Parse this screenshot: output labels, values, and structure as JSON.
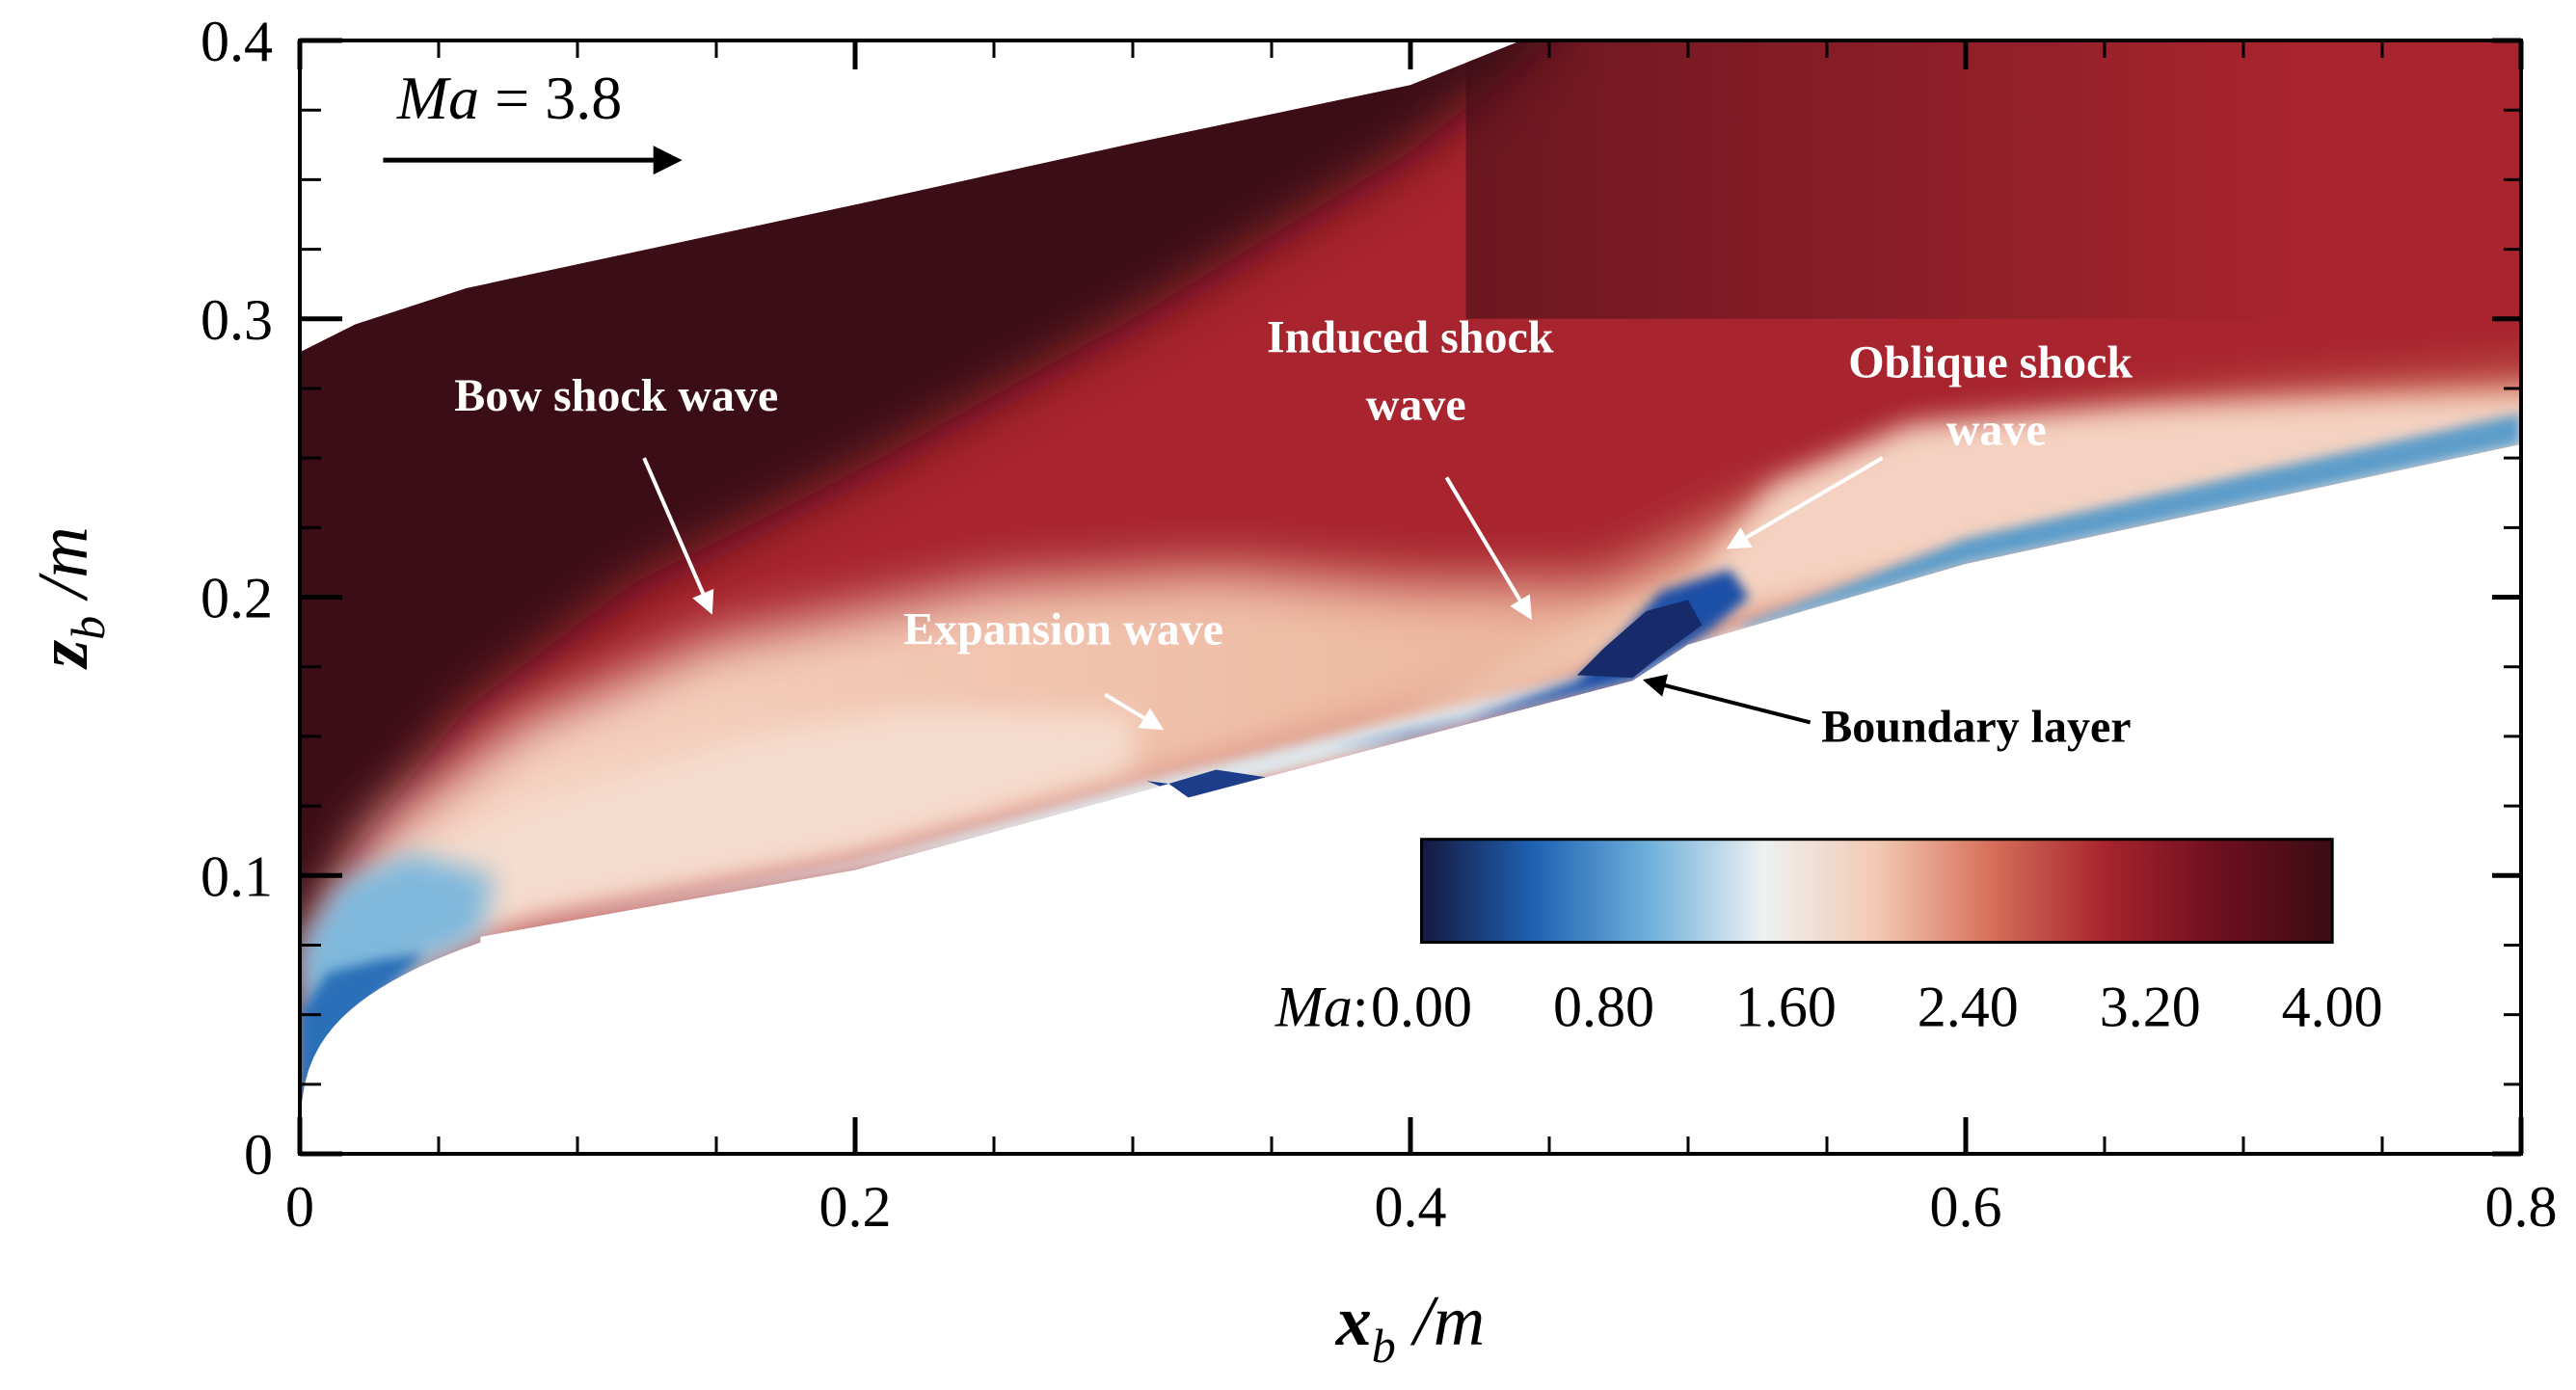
{
  "chart_data": {
    "type": "heatmap",
    "title": "",
    "field_variable": "Ma",
    "xlabel": {
      "base": "x",
      "sub": "b",
      "unit": " /m"
    },
    "ylabel": {
      "base": "z",
      "sub": "b",
      "unit": " /m"
    },
    "xlim": [
      0,
      0.8
    ],
    "ylim": [
      0,
      0.4
    ],
    "x_ticks": [
      0,
      0.2,
      0.4,
      0.6,
      0.8
    ],
    "x_tick_labels": [
      "0",
      "0.2",
      "0.4",
      "0.6",
      "0.8"
    ],
    "x_minor_step": 0.05,
    "y_ticks": [
      0,
      0.1,
      0.2,
      0.3,
      0.4
    ],
    "y_tick_labels": [
      "0",
      "0.1",
      "0.2",
      "0.3",
      "0.4"
    ],
    "y_minor_step": 0.025,
    "freestream": {
      "label_var": "Ma",
      "label_eq": " = 3.8",
      "value": 3.8
    },
    "colorbar": {
      "label": "Ma",
      "label_suffix": ":",
      "min": 0.0,
      "max": 4.0,
      "ticks": [
        0.0,
        0.8,
        1.6,
        2.4,
        3.2,
        4.0
      ],
      "tick_labels": [
        "0.00",
        "0.80",
        "1.60",
        "2.40",
        "3.20",
        "4.00"
      ],
      "colors": [
        "#15183f",
        "#1f63b4",
        "#6fb0da",
        "#eef1f2",
        "#f2c9b3",
        "#d6705a",
        "#a8242e",
        "#6e0f1e",
        "#3a0c14"
      ]
    },
    "annotations": [
      {
        "text": "Bow shock wave",
        "color": "white",
        "tip": [
          0.148,
          0.195
        ]
      },
      {
        "text_lines": [
          "Induced shock",
          "wave"
        ],
        "color": "white",
        "tip": [
          0.443,
          0.193
        ]
      },
      {
        "text_lines": [
          "Oblique shock",
          "wave"
        ],
        "color": "white",
        "tip": [
          0.515,
          0.218
        ]
      },
      {
        "text": "Expansion wave",
        "color": "white",
        "tip": [
          0.31,
          0.153
        ]
      },
      {
        "text": "Boundary layer",
        "color": "black",
        "tip": [
          0.485,
          0.17
        ]
      }
    ]
  }
}
